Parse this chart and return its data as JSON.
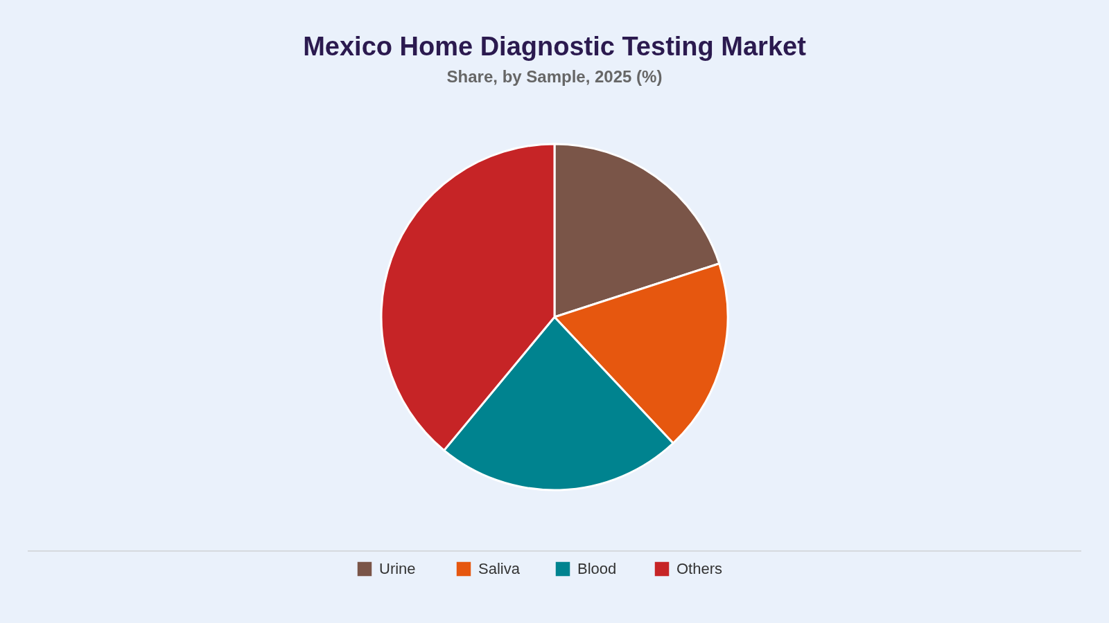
{
  "chart_data": {
    "type": "pie",
    "title": "Mexico Home Diagnostic Testing Market",
    "subtitle": "Share, by Sample, 2025 (%)",
    "categories": [
      "Urine",
      "Saliva",
      "Blood",
      "Others"
    ],
    "values": [
      20,
      18,
      23,
      39
    ],
    "colors": [
      "#7a5548",
      "#e6570f",
      "#00838f",
      "#c62426"
    ],
    "legend": "bottom"
  }
}
